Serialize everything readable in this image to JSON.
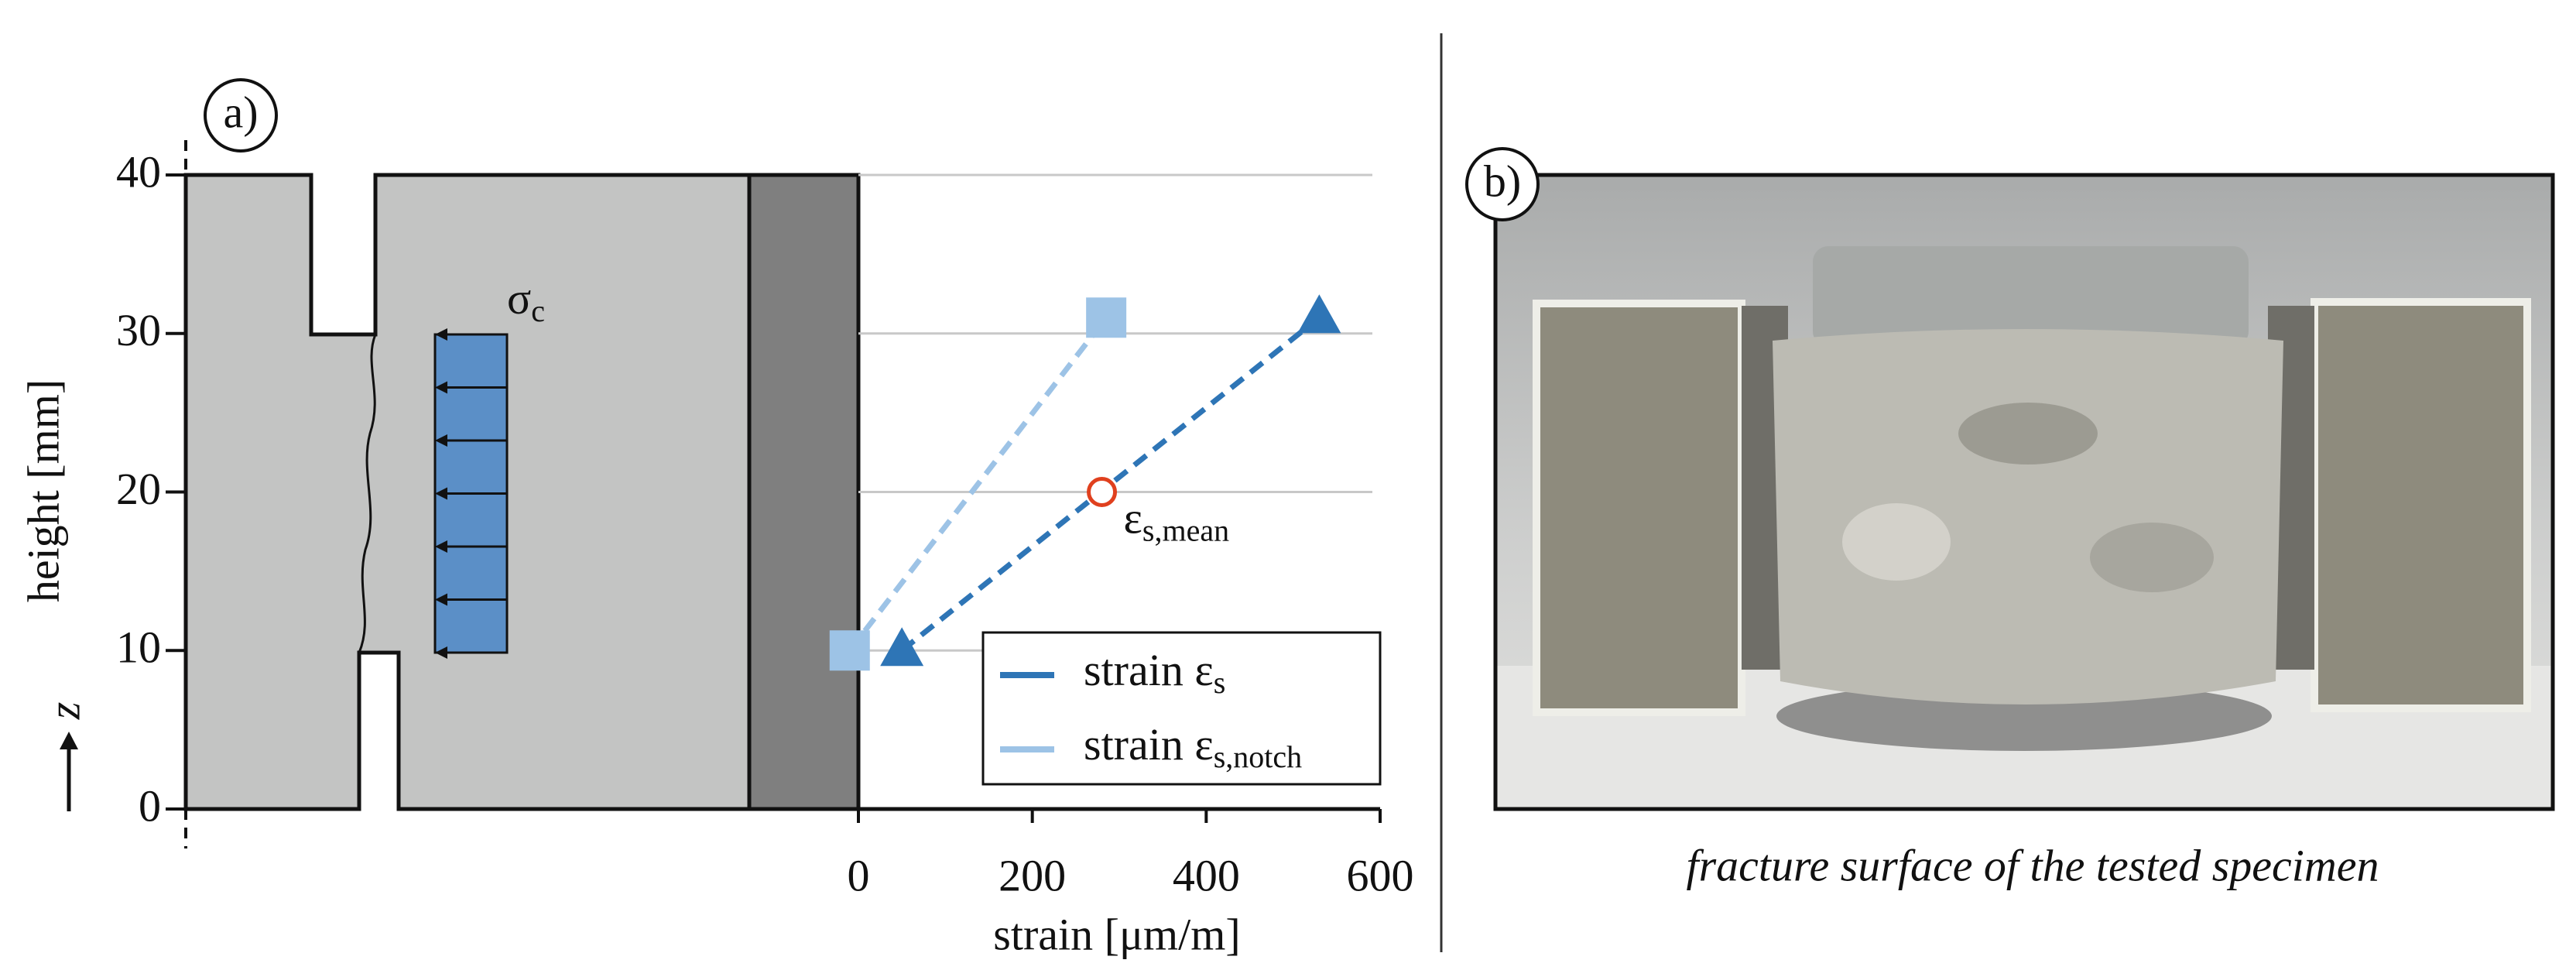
{
  "chart_data": {
    "type": "line",
    "panel_label": "a)",
    "xlabel": "strain [μm/m]",
    "ylabel": "height [mm]",
    "z_label": "z",
    "stress_label": "σ",
    "stress_label_sub": "c",
    "xlim": [
      0,
      600
    ],
    "xticks": [
      0,
      200,
      400,
      600
    ],
    "ylim": [
      0,
      40
    ],
    "yticks": [
      0,
      10,
      20,
      30,
      40
    ],
    "grid": true,
    "series": [
      {
        "name": "strain ε",
        "name_sub": "s",
        "color": "#2e75b6",
        "marker": "triangle",
        "x": [
          50,
          530
        ],
        "values": [
          10,
          31
        ]
      },
      {
        "name": "strain ε",
        "name_sub": "s,notch",
        "color": "#9dc3e6",
        "marker": "square",
        "x": [
          -10,
          285
        ],
        "values": [
          10,
          31
        ]
      }
    ],
    "mean_point": {
      "x": 280,
      "y": 20,
      "label": "ε",
      "label_sub": "s,mean",
      "color": "#e0401e"
    },
    "legend": "lower right"
  },
  "panel_b": {
    "label": "b)",
    "caption": "fracture surface of the tested specimen"
  }
}
